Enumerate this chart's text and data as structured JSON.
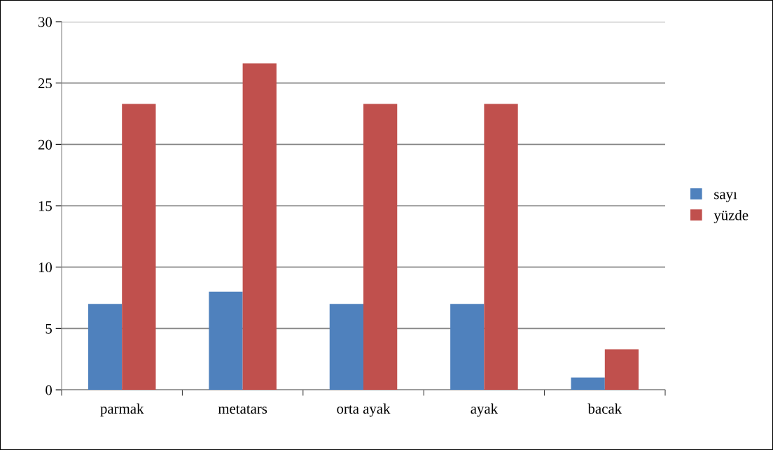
{
  "chart_data": {
    "type": "bar",
    "categories": [
      "parmak",
      "metatars",
      "orta ayak",
      "ayak",
      "bacak"
    ],
    "series": [
      {
        "name": "sayı",
        "color": "#4f81bd",
        "values": [
          7,
          8,
          7,
          7,
          1
        ]
      },
      {
        "name": "yüzde",
        "color": "#c0504d",
        "values": [
          23.3,
          26.6,
          23.3,
          23.3,
          3.3
        ]
      }
    ],
    "ylim": [
      0,
      30
    ],
    "yticks": [
      0,
      5,
      10,
      15,
      20,
      25,
      30
    ],
    "grid": "y",
    "legend": "right"
  }
}
